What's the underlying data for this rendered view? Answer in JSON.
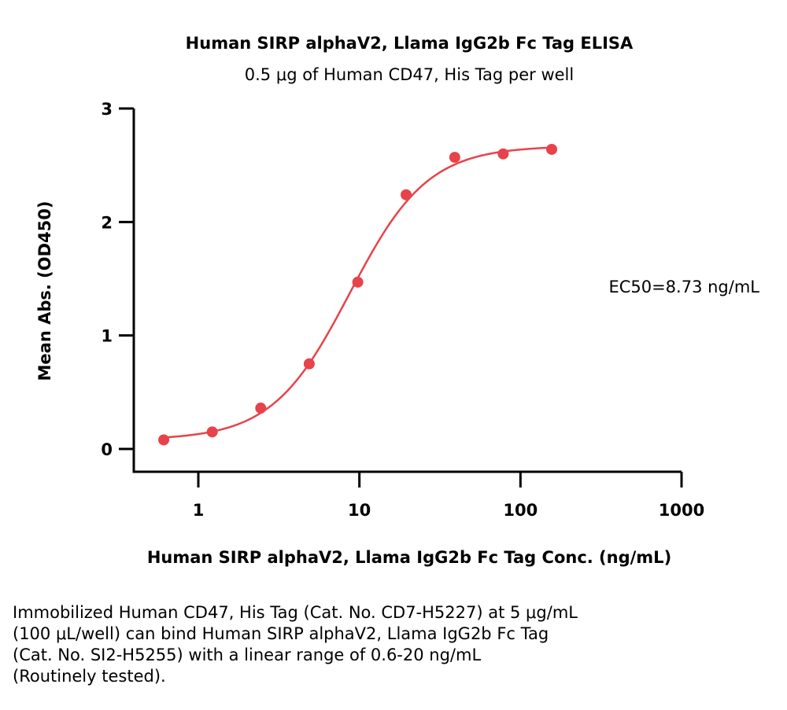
{
  "chart_data": {
    "type": "scatter",
    "title": "Human SIRP alphaV2, Llama IgG2b Fc Tag ELISA",
    "subtitle": "0.5 μg of Human CD47, His Tag per well",
    "xlabel": "Human SIRP alphaV2, Llama IgG2b Fc Tag Conc. (ng/mL)",
    "ylabel": "Mean Abs. (OD450)",
    "xscale": "log",
    "xlim": [
      0.5,
      1000
    ],
    "ylim": [
      0,
      3
    ],
    "x_ticks": [
      "1",
      "10",
      "100",
      "1000"
    ],
    "y_ticks": [
      "0",
      "1",
      "2",
      "3"
    ],
    "grid": false,
    "legend": "none",
    "series": [
      {
        "x": [
          0.61,
          1.22,
          2.44,
          4.88,
          9.77,
          19.5,
          39.1,
          78.1,
          156.3
        ],
        "y": [
          0.08,
          0.15,
          0.36,
          0.75,
          1.47,
          2.24,
          2.57,
          2.6,
          2.64
        ],
        "fit": "4PL",
        "fit_params": {
          "bottom": 0.08,
          "top": 2.67,
          "ec50": 8.73,
          "hill": 1.8
        }
      }
    ],
    "annotation": "EC50=8.73 ng/mL",
    "color": "#e8424a"
  },
  "caption_lines": [
    "Immobilized Human CD47, His Tag (Cat. No. CD7-H5227) at 5 μg/mL",
    "(100 μL/well) can bind Human SIRP alphaV2, Llama IgG2b Fc Tag",
    "(Cat. No. SI2-H5255) with a linear range of 0.6-20 ng/mL",
    "(Routinely tested)."
  ]
}
